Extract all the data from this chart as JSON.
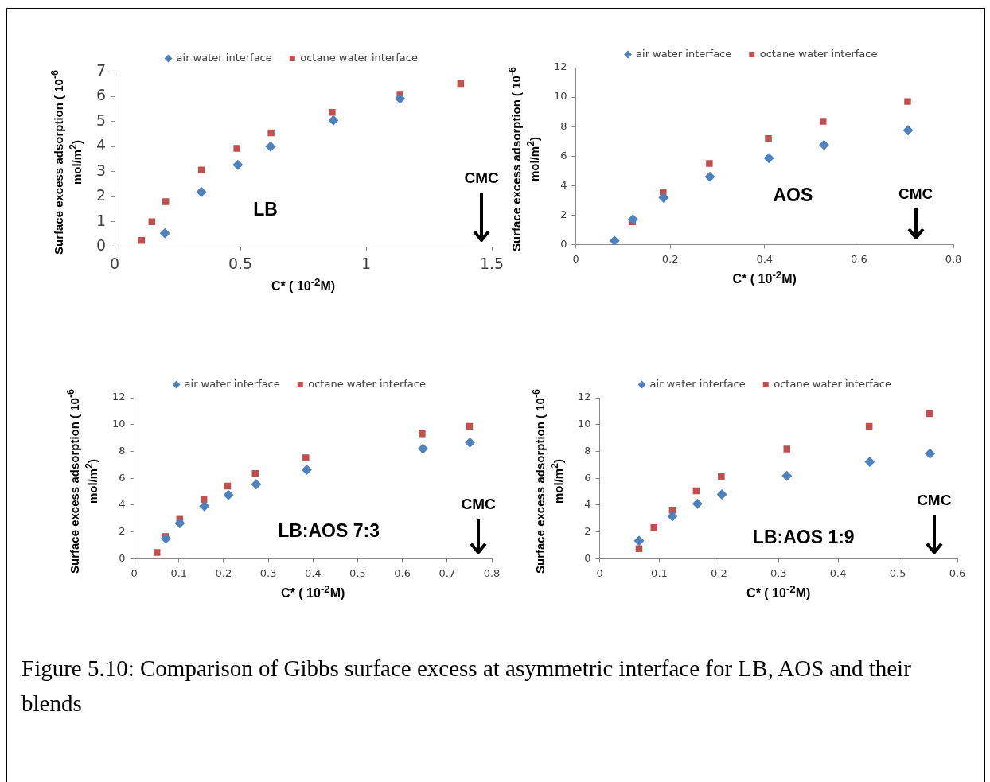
{
  "chart_data": [
    {
      "type": "scatter",
      "xlabel": "C* ( 10$^{-2}$M)",
      "ylabel": "Surface excess adsorption ( 10$^{-6}$ mol/m$^{2}$)",
      "legend": "top",
      "xlim": [
        0,
        1.5
      ],
      "xticks": [
        0,
        0.5,
        1,
        1.5
      ],
      "ylim": [
        0,
        7
      ],
      "yticks": [
        0,
        1,
        2,
        3,
        4,
        5,
        6,
        7
      ],
      "annotations": [
        "LB",
        "CMC"
      ],
      "series": [
        {
          "name": "air water interface",
          "color": "#4f81bd",
          "marker": "diamond",
          "x": [
            0.2,
            0.345,
            0.49,
            0.62,
            0.87,
            1.135
          ],
          "values": [
            0.54,
            2.19,
            3.27,
            4.0,
            5.05,
            5.92
          ]
        },
        {
          "name": "octane water interface",
          "color": "#c0504d",
          "marker": "square",
          "x": [
            0.107,
            0.148,
            0.203,
            0.345,
            0.486,
            0.622,
            0.865,
            1.135,
            1.376
          ],
          "values": [
            0.25,
            1.0,
            1.8,
            3.07,
            3.93,
            4.55,
            5.37,
            6.06,
            6.52
          ]
        }
      ]
    },
    {
      "type": "scatter",
      "xlabel": "C* ( 10$^{-2}$M)",
      "ylabel": "Surface excess adsorption ( 10$^{-6}$ mol/m$^{2}$)",
      "legend": "top",
      "xlim": [
        0,
        0.8
      ],
      "xticks": [
        0,
        0.2,
        0.4,
        0.6,
        0.8
      ],
      "ylim": [
        0,
        12
      ],
      "yticks": [
        0,
        2,
        4,
        6,
        8,
        10,
        12
      ],
      "annotations": [
        "AOS",
        "CMC"
      ],
      "series": [
        {
          "name": "air water interface",
          "color": "#4f81bd",
          "marker": "diamond",
          "x": [
            0.082,
            0.121,
            0.186,
            0.284,
            0.409,
            0.526,
            0.704
          ],
          "values": [
            0.25,
            1.71,
            3.18,
            4.6,
            5.86,
            6.75,
            7.75
          ]
        },
        {
          "name": "octane water interface",
          "color": "#c0504d",
          "marker": "square",
          "x": [
            0.12,
            0.185,
            0.283,
            0.408,
            0.524,
            0.703
          ],
          "values": [
            1.54,
            3.55,
            5.5,
            7.18,
            8.36,
            9.7
          ]
        }
      ]
    },
    {
      "type": "scatter",
      "xlabel": "C* ( 10$^{-2}$M)",
      "ylabel": "Surface excess adsorption ( 10$^{-6}$ mol/m$^{2}$)",
      "legend": "top",
      "xlim": [
        0,
        0.8
      ],
      "xticks": [
        0,
        0.1,
        0.2,
        0.3,
        0.4,
        0.5,
        0.6,
        0.7,
        0.8
      ],
      "ylim": [
        0,
        12
      ],
      "yticks": [
        0,
        2,
        4,
        6,
        8,
        10,
        12
      ],
      "annotations": [
        "LB:AOS 7:3",
        "CMC"
      ],
      "series": [
        {
          "name": "air water interface",
          "color": "#4f81bd",
          "marker": "diamond",
          "x": [
            0.071,
            0.102,
            0.157,
            0.211,
            0.273,
            0.386,
            0.646,
            0.751
          ],
          "values": [
            1.5,
            2.65,
            3.92,
            4.75,
            5.55,
            6.63,
            8.2,
            8.67
          ]
        },
        {
          "name": "octane water interface",
          "color": "#c0504d",
          "marker": "square",
          "x": [
            0.051,
            0.07,
            0.102,
            0.156,
            0.209,
            0.271,
            0.384,
            0.644,
            0.75
          ],
          "values": [
            0.47,
            1.65,
            2.94,
            4.41,
            5.42,
            6.36,
            7.52,
            9.32,
            9.87
          ]
        }
      ]
    },
    {
      "type": "scatter",
      "xlabel": "C* ( 10$^{-2}$M)",
      "ylabel": "Surface excess adsorption ( 10$^{-6}$ mol/m$^{2}$)",
      "legend": "top",
      "xlim": [
        0,
        0.6
      ],
      "xticks": [
        0,
        0.1,
        0.2,
        0.3,
        0.4,
        0.5,
        0.6
      ],
      "ylim": [
        0,
        12
      ],
      "yticks": [
        0,
        2,
        4,
        6,
        8,
        10,
        12
      ],
      "annotations": [
        "LB:AOS 1:9",
        "CMC",
        "Figure 5.10: Comparison of Gibbs surface excess at asymmetric interface for LB, AOS and their blends"
      ],
      "series": [
        {
          "name": "air water interface",
          "color": "#4f81bd",
          "marker": "diamond",
          "x": [
            0.066,
            0.122,
            0.164,
            0.205,
            0.314,
            0.453,
            0.554
          ],
          "values": [
            1.34,
            3.16,
            4.1,
            4.79,
            6.17,
            7.23,
            7.84
          ]
        },
        {
          "name": "octane water interface",
          "color": "#c0504d",
          "marker": "square",
          "x": [
            0.066,
            0.091,
            0.122,
            0.162,
            0.204,
            0.314,
            0.452,
            0.553
          ],
          "values": [
            0.75,
            2.32,
            3.62,
            5.06,
            6.13,
            8.17,
            9.87,
            10.81
          ]
        }
      ]
    }
  ]
}
